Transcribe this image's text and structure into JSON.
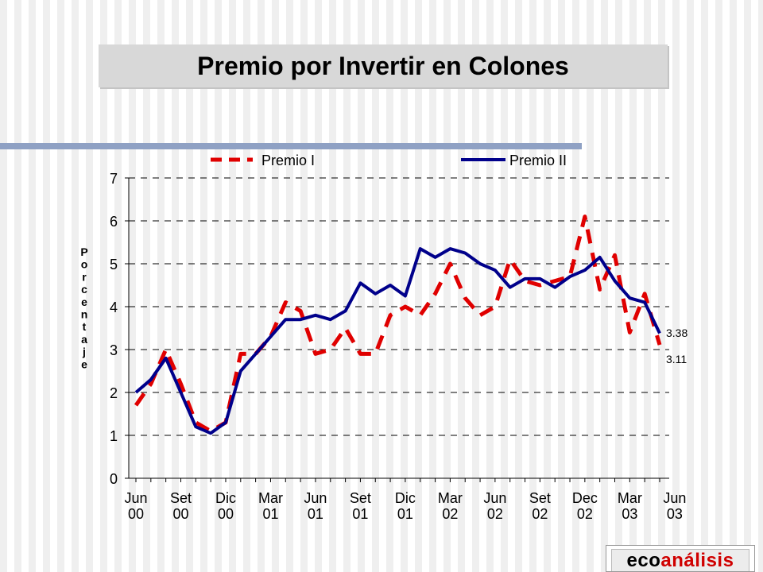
{
  "slide": {
    "title": "Premio por Invertir en Colones"
  },
  "logo": {
    "part1": "eco",
    "part2": "análisis"
  },
  "chart_data": {
    "type": "line",
    "title": "",
    "ylabel": "Porcentaje",
    "ylim": [
      0,
      7
    ],
    "yticks": [
      0,
      1,
      2,
      3,
      4,
      5,
      6,
      7
    ],
    "grid": true,
    "legend_position": "top",
    "x_tick_labels": [
      [
        "Jun",
        "00"
      ],
      [
        "Set",
        "00"
      ],
      [
        "Dic",
        "00"
      ],
      [
        "Mar",
        "01"
      ],
      [
        "Jun",
        "01"
      ],
      [
        "Set",
        "01"
      ],
      [
        "Dic",
        "01"
      ],
      [
        "Mar",
        "02"
      ],
      [
        "Jun",
        "02"
      ],
      [
        "Set",
        "02"
      ],
      [
        "Dec",
        "02"
      ],
      [
        "Mar",
        "03"
      ],
      [
        "Jun",
        "03"
      ]
    ],
    "series": [
      {
        "name": "Premio I",
        "color": "#e00000",
        "style": "dashed",
        "end_label": "3.11",
        "values": [
          1.7,
          2.2,
          3.0,
          2.2,
          1.3,
          1.1,
          1.3,
          2.9,
          2.9,
          3.3,
          4.1,
          3.9,
          2.9,
          3.0,
          3.5,
          2.9,
          2.9,
          3.8,
          4.0,
          3.8,
          4.3,
          5.0,
          4.2,
          3.8,
          4.0,
          5.1,
          4.6,
          4.5,
          4.6,
          4.7,
          6.1,
          4.4,
          5.2,
          3.4,
          4.3,
          3.11
        ]
      },
      {
        "name": "Premio II",
        "color": "#00008b",
        "style": "solid",
        "end_label": "3.38",
        "values": [
          2.0,
          2.3,
          2.8,
          2.0,
          1.2,
          1.05,
          1.3,
          2.5,
          2.9,
          3.3,
          3.7,
          3.7,
          3.8,
          3.7,
          3.9,
          4.55,
          4.3,
          4.5,
          4.25,
          5.35,
          5.15,
          5.35,
          5.25,
          5.0,
          4.85,
          4.45,
          4.65,
          4.65,
          4.45,
          4.7,
          4.85,
          5.15,
          4.6,
          4.2,
          4.1,
          3.38
        ]
      }
    ]
  }
}
